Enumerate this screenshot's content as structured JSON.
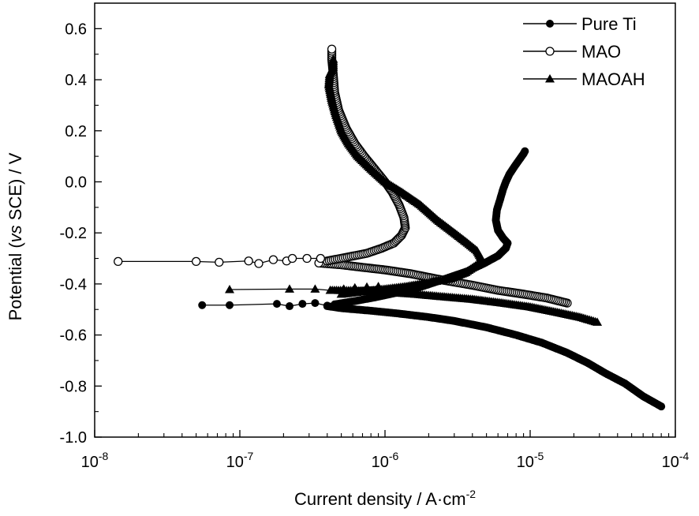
{
  "chart_data": {
    "type": "line",
    "title": "",
    "xlabel": "Current density / A·cm",
    "xlabel_sup": "-2",
    "ylabel_parts": [
      "Potential (",
      "vs",
      " SCE) / V"
    ],
    "xscale": "log",
    "xlim": [
      1e-08,
      0.0001
    ],
    "ylim": [
      -1.0,
      0.7
    ],
    "x_tick_labels": [
      {
        "value": 1e-08,
        "base": "10",
        "exp": "-8"
      },
      {
        "value": 1e-07,
        "base": "10",
        "exp": "-7"
      },
      {
        "value": 1e-06,
        "base": "10",
        "exp": "-6"
      },
      {
        "value": 1e-05,
        "base": "10",
        "exp": "-5"
      },
      {
        "value": 0.0001,
        "base": "10",
        "exp": "-4"
      }
    ],
    "y_ticks": [
      -1.0,
      -0.8,
      -0.6,
      -0.4,
      -0.2,
      0.0,
      0.2,
      0.4,
      0.6
    ],
    "y_tick_labels": [
      "-1.0",
      "-0.8",
      "-0.6",
      "-0.4",
      "-0.2",
      "0.0",
      "0.2",
      "0.4",
      "0.6"
    ],
    "grid": false,
    "legend_position": "top-right",
    "series": [
      {
        "name": "Pure Ti",
        "marker": "filled-circle",
        "cathodic": [
          [
            8e-05,
            -0.88
          ],
          [
            6e-05,
            -0.84
          ],
          [
            4.5e-05,
            -0.79
          ],
          [
            3.3e-05,
            -0.75
          ],
          [
            2.5e-05,
            -0.71
          ],
          [
            1.8e-05,
            -0.67
          ],
          [
            1.2e-05,
            -0.63
          ],
          [
            8e-06,
            -0.6
          ],
          [
            5e-06,
            -0.57
          ],
          [
            3e-06,
            -0.545
          ],
          [
            2e-06,
            -0.53
          ],
          [
            1.2e-06,
            -0.515
          ],
          [
            8e-07,
            -0.505
          ],
          [
            5e-07,
            -0.495
          ],
          [
            4e-07,
            -0.487
          ]
        ],
        "markers_sparse": [
          [
            5.5e-08,
            -0.483
          ],
          [
            8.5e-08,
            -0.483
          ],
          [
            1.8e-07,
            -0.478
          ],
          [
            2.2e-07,
            -0.487
          ],
          [
            2.7e-07,
            -0.478
          ],
          [
            3.3e-07,
            -0.475
          ],
          [
            4e-07,
            -0.485
          ]
        ],
        "anodic": [
          [
            4.5e-07,
            -0.48
          ],
          [
            6.5e-07,
            -0.465
          ],
          [
            9e-07,
            -0.45
          ],
          [
            1.3e-06,
            -0.43
          ],
          [
            1.8e-06,
            -0.41
          ],
          [
            2.6e-06,
            -0.38
          ],
          [
            3.7e-06,
            -0.35
          ],
          [
            4.8e-06,
            -0.32
          ],
          [
            6e-06,
            -0.29
          ],
          [
            6.8e-06,
            -0.26
          ],
          [
            7e-06,
            -0.24
          ],
          [
            6.5e-06,
            -0.22
          ],
          [
            6e-06,
            -0.19
          ],
          [
            5.8e-06,
            -0.15
          ],
          [
            5.9e-06,
            -0.11
          ],
          [
            6.2e-06,
            -0.07
          ],
          [
            6.5e-06,
            -0.03
          ],
          [
            6.8e-06,
            0.0
          ],
          [
            7.2e-06,
            0.03
          ],
          [
            7.8e-06,
            0.06
          ],
          [
            8.5e-06,
            0.09
          ],
          [
            9e-06,
            0.11
          ],
          [
            9.2e-06,
            0.12
          ]
        ]
      },
      {
        "name": "MAO",
        "marker": "open-circle",
        "cathodic": [
          [
            1.8e-05,
            -0.475
          ],
          [
            1.3e-05,
            -0.455
          ],
          [
            9e-06,
            -0.44
          ],
          [
            6e-06,
            -0.425
          ],
          [
            4e-06,
            -0.405
          ],
          [
            2.5e-06,
            -0.385
          ],
          [
            1.5e-06,
            -0.36
          ],
          [
            1e-06,
            -0.345
          ],
          [
            7e-07,
            -0.335
          ],
          [
            5e-07,
            -0.325
          ],
          [
            3.5e-07,
            -0.318
          ]
        ],
        "markers_sparse": [
          [
            1.45e-08,
            -0.312
          ],
          [
            5e-08,
            -0.312
          ],
          [
            7.2e-08,
            -0.315
          ],
          [
            1.15e-07,
            -0.31
          ],
          [
            1.35e-07,
            -0.32
          ],
          [
            1.7e-07,
            -0.305
          ],
          [
            2.1e-07,
            -0.31
          ],
          [
            2.3e-07,
            -0.3
          ],
          [
            2.9e-07,
            -0.3
          ],
          [
            3.6e-07,
            -0.3
          ]
        ],
        "anodic": [
          [
            4e-07,
            -0.31
          ],
          [
            5.5e-07,
            -0.295
          ],
          [
            7.5e-07,
            -0.28
          ],
          [
            9.5e-07,
            -0.26
          ],
          [
            1.15e-06,
            -0.24
          ],
          [
            1.3e-06,
            -0.21
          ],
          [
            1.38e-06,
            -0.18
          ],
          [
            1.35e-06,
            -0.14
          ],
          [
            1.25e-06,
            -0.09
          ],
          [
            1.12e-06,
            -0.04
          ],
          [
            1e-06,
            0.0
          ],
          [
            8.5e-07,
            0.05
          ],
          [
            7.2e-07,
            0.1
          ],
          [
            6.2e-07,
            0.15
          ],
          [
            5.4e-07,
            0.21
          ],
          [
            4.8e-07,
            0.28
          ],
          [
            4.5e-07,
            0.35
          ],
          [
            4.4e-07,
            0.42
          ],
          [
            4.3e-07,
            0.48
          ],
          [
            4.3e-07,
            0.52
          ]
        ]
      },
      {
        "name": "MAOAH",
        "marker": "filled-triangle",
        "cathodic": [
          [
            2.9e-05,
            -0.55
          ],
          [
            2.2e-05,
            -0.53
          ],
          [
            1.5e-05,
            -0.51
          ],
          [
            1e-05,
            -0.49
          ],
          [
            6.5e-06,
            -0.475
          ],
          [
            4e-06,
            -0.46
          ],
          [
            2.5e-06,
            -0.45
          ],
          [
            1.6e-06,
            -0.44
          ],
          [
            1e-06,
            -0.432
          ],
          [
            6e-07,
            -0.426
          ],
          [
            4.2e-07,
            -0.425
          ]
        ],
        "markers_sparse": [
          [
            8.5e-08,
            -0.422
          ],
          [
            2.2e-07,
            -0.42
          ],
          [
            3.3e-07,
            -0.42
          ],
          [
            4.2e-07,
            -0.425
          ],
          [
            5.2e-07,
            -0.42
          ],
          [
            6.2e-07,
            -0.415
          ],
          [
            7.5e-07,
            -0.412
          ],
          [
            9e-07,
            -0.41
          ]
        ],
        "anodic": [
          [
            5e-07,
            -0.44
          ],
          [
            7e-07,
            -0.43
          ],
          [
            1e-06,
            -0.42
          ],
          [
            1.4e-06,
            -0.41
          ],
          [
            2e-06,
            -0.395
          ],
          [
            2.8e-06,
            -0.38
          ],
          [
            3.6e-06,
            -0.355
          ],
          [
            4.3e-06,
            -0.325
          ],
          [
            4.6e-06,
            -0.3
          ],
          [
            4.3e-06,
            -0.27
          ],
          [
            3.7e-06,
            -0.24
          ],
          [
            3e-06,
            -0.2
          ],
          [
            2.3e-06,
            -0.15
          ],
          [
            1.75e-06,
            -0.09
          ],
          [
            1.3e-06,
            -0.04
          ],
          [
            1e-06,
            0.0
          ],
          [
            8e-07,
            0.05
          ],
          [
            6.5e-07,
            0.1
          ],
          [
            5.6e-07,
            0.15
          ],
          [
            5e-07,
            0.2
          ],
          [
            4.6e-07,
            0.26
          ],
          [
            4.3e-07,
            0.32
          ],
          [
            4.1e-07,
            0.38
          ],
          [
            4.15e-07,
            0.42
          ],
          [
            4.4e-07,
            0.45
          ],
          [
            4.4e-07,
            0.48
          ]
        ]
      }
    ]
  }
}
